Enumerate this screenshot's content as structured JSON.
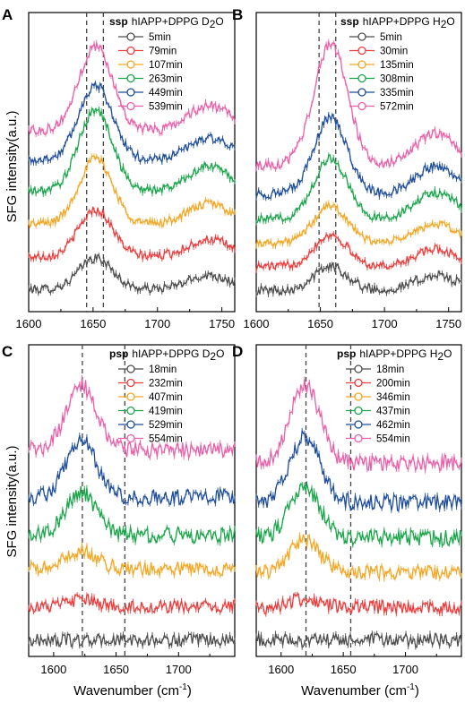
{
  "figure": {
    "y_axis_label": "SFG intensity(a.u.)",
    "x_axis_label_bottom": "Wavenumber (cm",
    "x_axis_label_sup": "-1",
    "x_axis_label_close": ")"
  },
  "chart_data": [
    {
      "panel": "A",
      "type": "line",
      "polarization": "ssp",
      "system_prefix": "hIAPP+DPPG D",
      "system_sub": "2",
      "system_suffix": "O",
      "xlim": [
        1600,
        1760
      ],
      "x_ticks": [
        1600,
        1650,
        1700,
        1750
      ],
      "dashed_lines": [
        1645,
        1658
      ],
      "peak_amide": 1652,
      "peak_amide_width": 13,
      "series": [
        {
          "name": "5min",
          "color": "#4d4d4d",
          "peak": 1.0,
          "shoulder": 0.45,
          "base": 0.2,
          "offset": 0.0,
          "noise": 0.14
        },
        {
          "name": "79min",
          "color": "#ee3b3b",
          "peak": 1.5,
          "shoulder": 0.55,
          "base": 0.25,
          "offset": 1.0,
          "noise": 0.14
        },
        {
          "name": "107min",
          "color": "#f5a623",
          "peak": 2.1,
          "shoulder": 0.65,
          "base": 0.25,
          "offset": 2.05,
          "noise": 0.14
        },
        {
          "name": "263min",
          "color": "#1aa64a",
          "peak": 2.6,
          "shoulder": 0.8,
          "base": 0.25,
          "offset": 3.1,
          "noise": 0.14
        },
        {
          "name": "449min",
          "color": "#1f4e9c",
          "peak": 2.4,
          "shoulder": 0.7,
          "base": 0.25,
          "offset": 4.1,
          "noise": 0.14
        },
        {
          "name": "539min",
          "color": "#ec5fa8",
          "peak": 2.7,
          "shoulder": 0.8,
          "base": 0.3,
          "offset": 5.0,
          "noise": 0.16
        }
      ]
    },
    {
      "panel": "B",
      "type": "line",
      "polarization": "ssp",
      "system_prefix": "hIAPP+DPPG H",
      "system_sub": "2",
      "system_suffix": "O",
      "xlim": [
        1600,
        1760
      ],
      "x_ticks": [
        1600,
        1650,
        1700,
        1750
      ],
      "dashed_lines": [
        1649,
        1662
      ],
      "peak_amide": 1658,
      "peak_amide_width": 13,
      "series": [
        {
          "name": "5min",
          "color": "#4d4d4d",
          "peak": 0.9,
          "shoulder": 0.55,
          "base": 0.2,
          "offset": 0.0,
          "noise": 0.18
        },
        {
          "name": "30min",
          "color": "#ee3b3b",
          "peak": 1.2,
          "shoulder": 0.65,
          "base": 0.25,
          "offset": 0.85,
          "noise": 0.16
        },
        {
          "name": "135min",
          "color": "#f5a623",
          "peak": 1.4,
          "shoulder": 0.7,
          "base": 0.25,
          "offset": 1.75,
          "noise": 0.14
        },
        {
          "name": "308min",
          "color": "#1aa64a",
          "peak": 2.3,
          "shoulder": 1.0,
          "base": 0.25,
          "offset": 2.65,
          "noise": 0.16
        },
        {
          "name": "335min",
          "color": "#1f4e9c",
          "peak": 2.9,
          "shoulder": 1.05,
          "base": 0.25,
          "offset": 3.6,
          "noise": 0.18
        },
        {
          "name": "572min",
          "color": "#ec5fa8",
          "peak": 4.6,
          "shoulder": 1.2,
          "base": 0.35,
          "offset": 4.6,
          "noise": 0.18
        }
      ]
    },
    {
      "panel": "C",
      "type": "line",
      "polarization": "psp",
      "system_prefix": "hIAPP+DPPG D",
      "system_sub": "2",
      "system_suffix": "O",
      "xlim": [
        1580,
        1745
      ],
      "x_ticks": [
        1600,
        1650,
        1700
      ],
      "dashed_lines": [
        1623,
        1657
      ],
      "peak_amide": 1622,
      "peak_amide_width": 12,
      "series": [
        {
          "name": "18min",
          "color": "#4d4d4d",
          "peak": 0.0,
          "shoulder": 0.0,
          "base": 0.0,
          "offset": 0.0,
          "noise": 0.14
        },
        {
          "name": "232min",
          "color": "#ee3b3b",
          "peak": 0.15,
          "shoulder": 0.0,
          "base": 0.0,
          "offset": 0.75,
          "noise": 0.14
        },
        {
          "name": "407min",
          "color": "#f5a623",
          "peak": 0.4,
          "shoulder": 0.0,
          "base": 0.0,
          "offset": 1.6,
          "noise": 0.16
        },
        {
          "name": "419min",
          "color": "#1aa64a",
          "peak": 0.95,
          "shoulder": 0.0,
          "base": 0.0,
          "offset": 2.35,
          "noise": 0.18
        },
        {
          "name": "529min",
          "color": "#1f4e9c",
          "peak": 1.25,
          "shoulder": 0.0,
          "base": 0.0,
          "offset": 3.2,
          "noise": 0.18
        },
        {
          "name": "554min",
          "color": "#ec5fa8",
          "peak": 1.45,
          "shoulder": 0.0,
          "base": 0.0,
          "offset": 4.25,
          "noise": 0.18
        }
      ]
    },
    {
      "panel": "D",
      "type": "line",
      "polarization": "psp",
      "system_prefix": "hIAPP+DPPG H",
      "system_sub": "2",
      "system_suffix": "O",
      "xlim": [
        1580,
        1745
      ],
      "x_ticks": [
        1600,
        1650,
        1700
      ],
      "dashed_lines": [
        1620,
        1656
      ],
      "peak_amide": 1619,
      "peak_amide_width": 12,
      "series": [
        {
          "name": "18min",
          "color": "#4d4d4d",
          "peak": 0.0,
          "shoulder": 0.0,
          "base": 0.0,
          "offset": 0.0,
          "noise": 0.16
        },
        {
          "name": "200min",
          "color": "#ee3b3b",
          "peak": 0.2,
          "shoulder": 0.0,
          "base": 0.0,
          "offset": 0.75,
          "noise": 0.16
        },
        {
          "name": "346min",
          "color": "#f5a623",
          "peak": 0.75,
          "shoulder": 0.0,
          "base": 0.0,
          "offset": 1.55,
          "noise": 0.16
        },
        {
          "name": "437min",
          "color": "#1aa64a",
          "peak": 1.15,
          "shoulder": 0.0,
          "base": 0.0,
          "offset": 2.35,
          "noise": 0.18
        },
        {
          "name": "462min",
          "color": "#1f4e9c",
          "peak": 1.5,
          "shoulder": 0.0,
          "base": 0.0,
          "offset": 3.15,
          "noise": 0.18
        },
        {
          "name": "554min",
          "color": "#ec5fa8",
          "peak": 1.8,
          "shoulder": 0.0,
          "base": 0.0,
          "offset": 4.05,
          "noise": 0.18
        }
      ]
    }
  ]
}
